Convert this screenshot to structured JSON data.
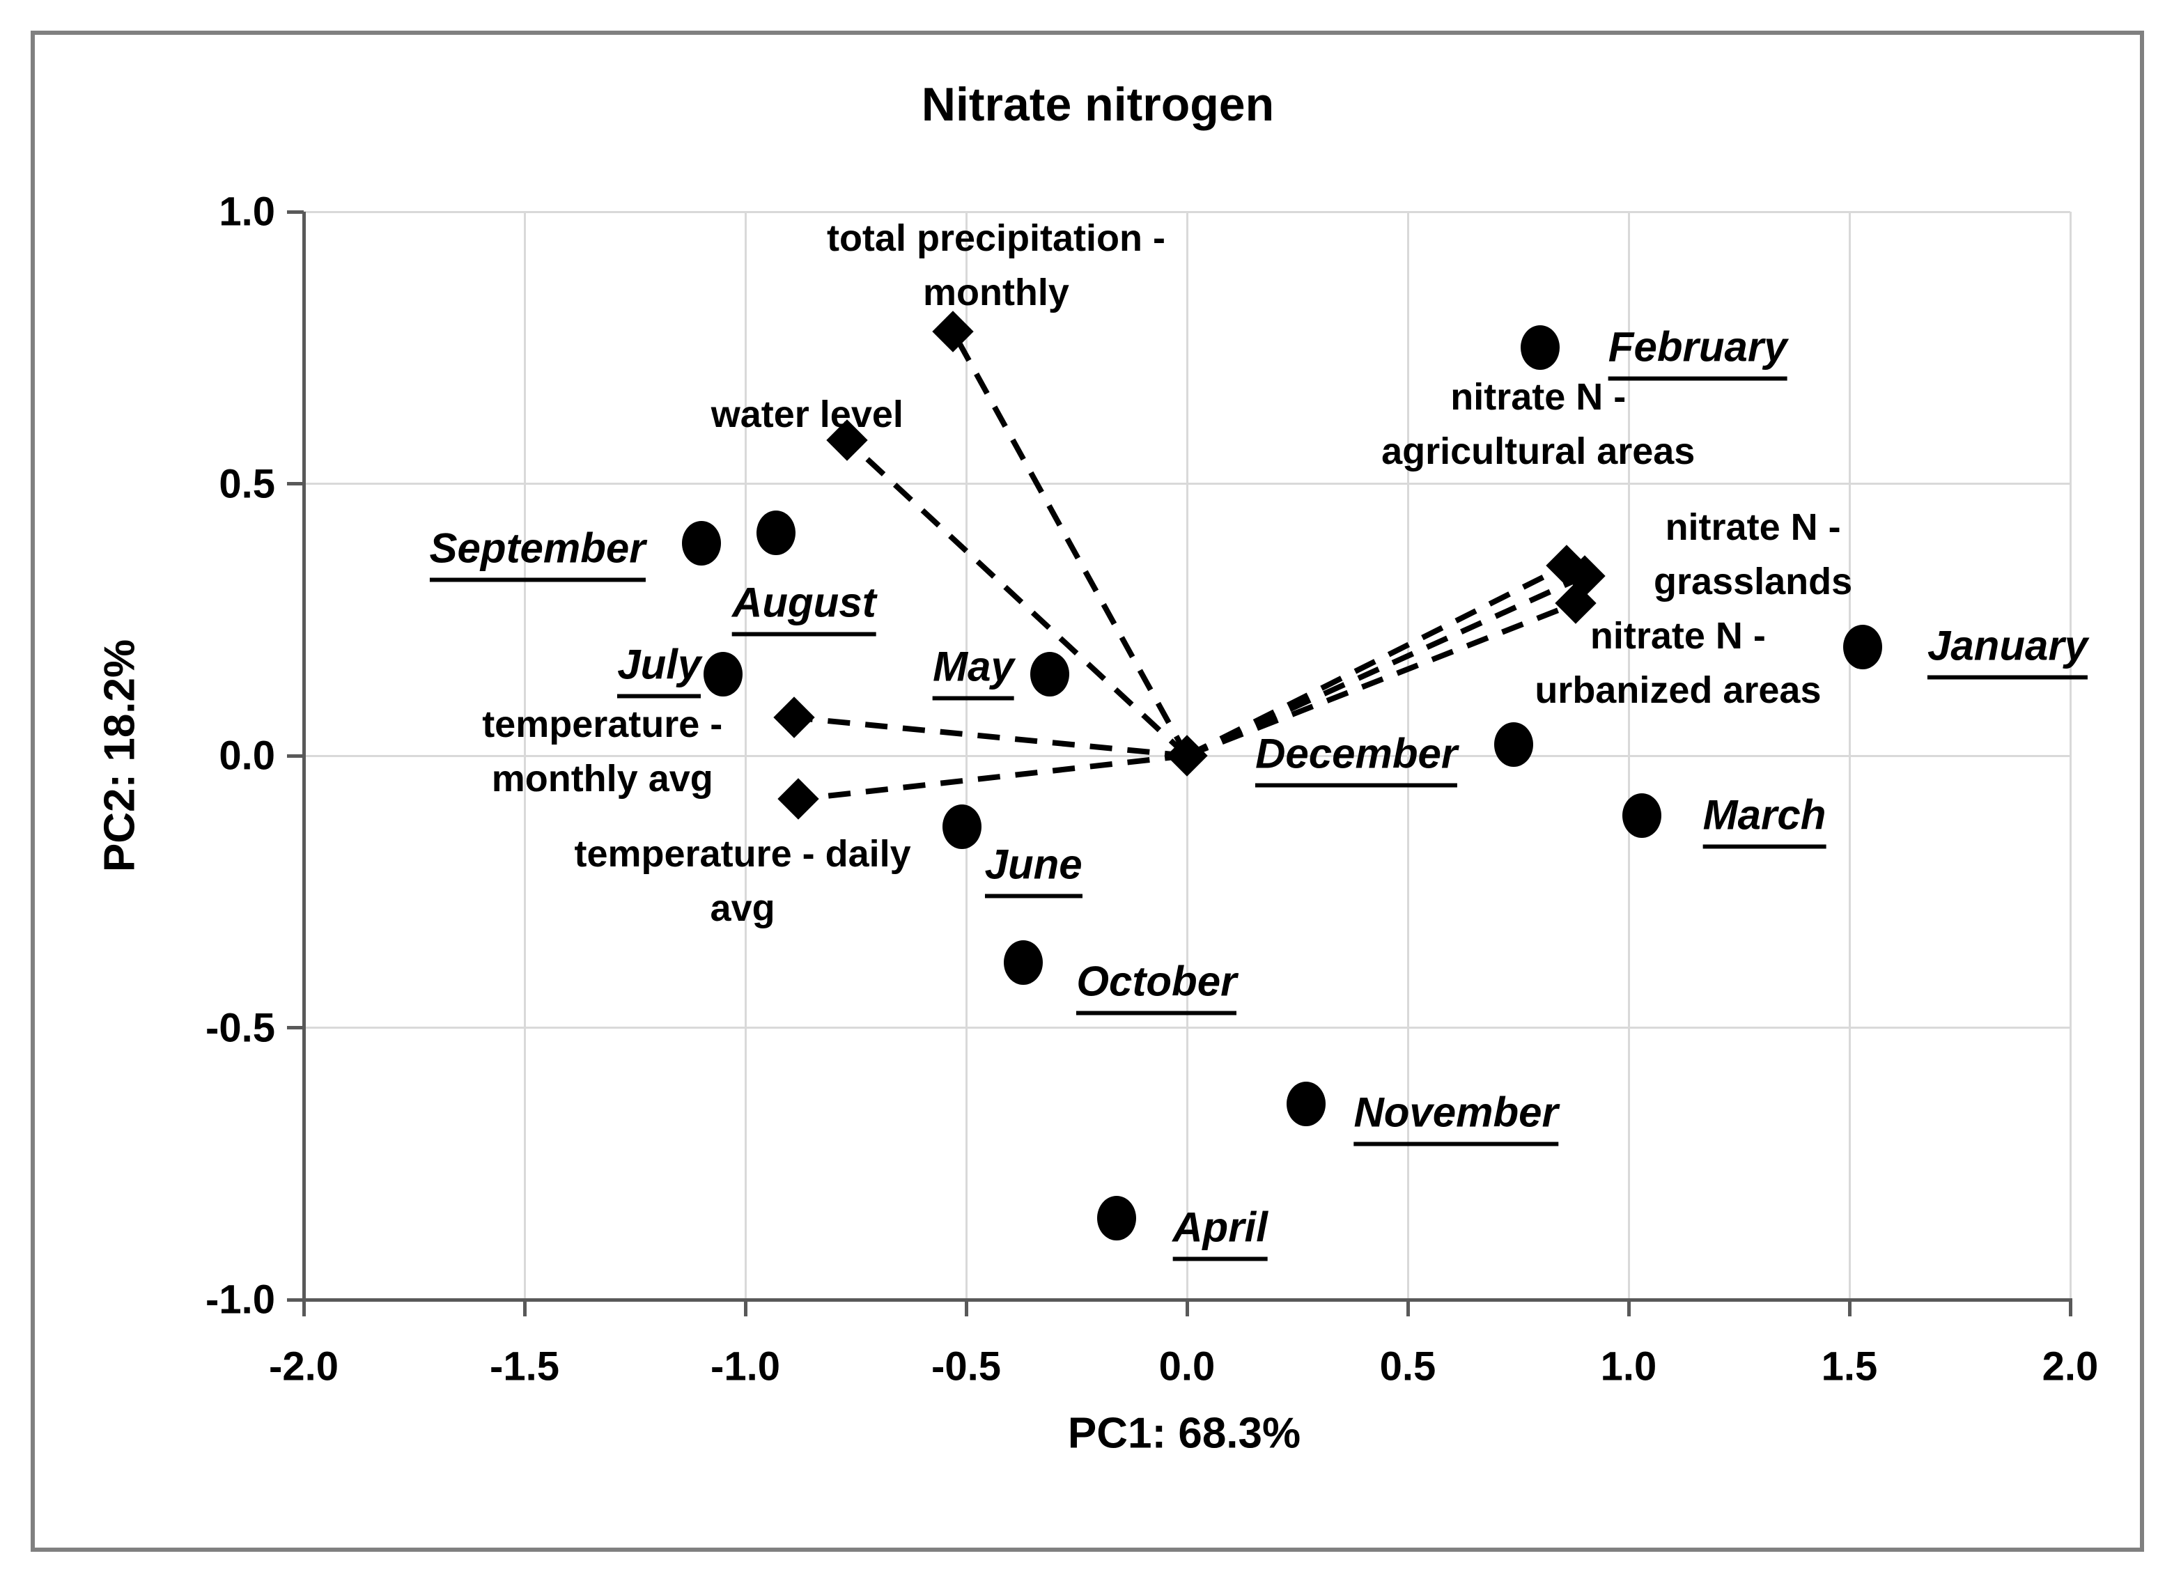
{
  "title": "Nitrate nitrogen",
  "axes": {
    "x": {
      "label": "PC1: 68.3%",
      "min": -2.0,
      "max": 2.0,
      "ticks": [
        "-2.0",
        "-1.5",
        "-1.0",
        "-0.5",
        "0.0",
        "0.5",
        "1.0",
        "1.5",
        "2.0"
      ]
    },
    "y": {
      "label": "PC2: 18.2%",
      "min": -1.0,
      "max": 1.0,
      "ticks": [
        "1.0",
        "0.5",
        "0.0",
        "-0.5",
        "-1.0"
      ]
    }
  },
  "colors": {
    "marker": "#000000",
    "text": "#000000",
    "grid": "#d9d9d9",
    "axis": "#595959",
    "border": "#808080",
    "background": "#ffffff"
  },
  "chart_data": {
    "type": "scatter",
    "title": "Nitrate nitrogen",
    "xlabel": "PC1: 68.3%",
    "ylabel": "PC2: 18.2%",
    "xlim": [
      -2.0,
      2.0
    ],
    "ylim": [
      -1.0,
      1.0
    ],
    "grid": true,
    "legend": false,
    "series": [
      {
        "name": "months",
        "marker": "circle",
        "points": [
          {
            "label": "September",
            "x": -1.1,
            "y": 0.39,
            "label_dx": -235,
            "label_dy": 7
          },
          {
            "label": "August",
            "x": -0.93,
            "y": 0.41,
            "label_dx": 40,
            "label_dy": 100
          },
          {
            "label": "July",
            "x": -1.05,
            "y": 0.15,
            "label_dx": -92,
            "label_dy": -14
          },
          {
            "label": "May",
            "x": -0.31,
            "y": 0.15,
            "label_dx": -110,
            "label_dy": -11
          },
          {
            "label": "June",
            "x": -0.51,
            "y": -0.13,
            "label_dx": 103,
            "label_dy": 54
          },
          {
            "label": "October",
            "x": -0.37,
            "y": -0.38,
            "label_dx": 191,
            "label_dy": 27
          },
          {
            "label": "November",
            "x": 0.27,
            "y": -0.64,
            "label_dx": 215,
            "label_dy": 12
          },
          {
            "label": "April",
            "x": -0.16,
            "y": -0.85,
            "label_dx": 149,
            "label_dy": 13
          },
          {
            "label": "December",
            "x": 0.74,
            "y": 0.02,
            "label_dx": -226,
            "label_dy": 13
          },
          {
            "label": "March",
            "x": 1.03,
            "y": -0.11,
            "label_dx": 176,
            "label_dy": -1
          },
          {
            "label": "January",
            "x": 1.53,
            "y": 0.2,
            "label_dx": 208,
            "label_dy": -2
          },
          {
            "label": "February",
            "x": 0.8,
            "y": 0.75,
            "label_dx": 226,
            "label_dy": -1
          }
        ]
      },
      {
        "name": "variables",
        "marker": "diamond",
        "vectors_from_origin": true,
        "origin": {
          "x": 0.0,
          "y": 0.0
        },
        "points": [
          {
            "label": "total precipitation - monthly",
            "lines": [
              "total precipitation -",
              "monthly"
            ],
            "x": -0.53,
            "y": 0.78,
            "label_dx": 62,
            "label_dy": -95
          },
          {
            "label": "water level",
            "lines": [
              "water level"
            ],
            "x": -0.77,
            "y": 0.58,
            "label_dx": -57,
            "label_dy": -37
          },
          {
            "label": "temperature - monthly avg",
            "lines": [
              "temperature -",
              "monthly avg"
            ],
            "x": -0.89,
            "y": 0.07,
            "label_dx": -275,
            "label_dy": 49
          },
          {
            "label": "temperature - daily avg",
            "lines": [
              "temperature - daily",
              "avg"
            ],
            "x": -0.88,
            "y": -0.08,
            "label_dx": -80,
            "label_dy": 118
          },
          {
            "label": "nitrate N - agricultural areas",
            "lines": [
              "nitrate N -",
              "agricultural areas"
            ],
            "x": 0.86,
            "y": 0.35,
            "label_dx": -41,
            "label_dy": -203
          },
          {
            "label": "nitrate N - grasslands",
            "lines": [
              "nitrate N  -",
              "grasslands"
            ],
            "x": 0.9,
            "y": 0.33,
            "label_dx": 242,
            "label_dy": -31
          },
          {
            "label": "nitrate N - urbanized areas",
            "lines": [
              "nitrate N -",
              "urbanized areas"
            ],
            "x": 0.88,
            "y": 0.28,
            "label_dx": 147,
            "label_dy": 86
          }
        ]
      }
    ]
  }
}
